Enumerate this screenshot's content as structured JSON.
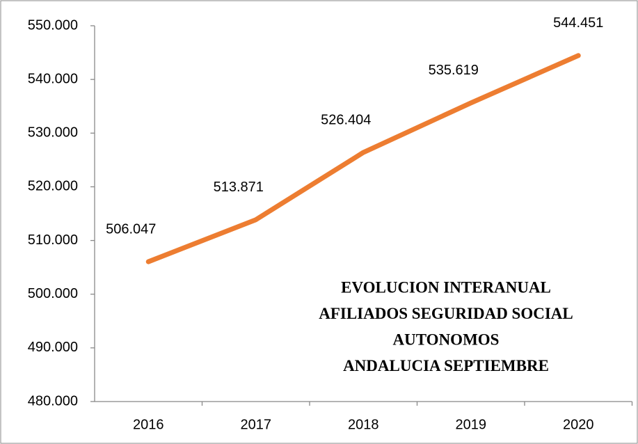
{
  "chart_data": {
    "type": "line",
    "title": [
      "EVOLUCION INTERANUAL",
      "AFILIADOS SEGURIDAD SOCIAL",
      "AUTONOMOS",
      "ANDALUCIA SEPTIEMBRE"
    ],
    "categories": [
      "2016",
      "2017",
      "2018",
      "2019",
      "2020"
    ],
    "series": [
      {
        "color": "#ed7d31",
        "values": [
          506047,
          513871,
          526404,
          535619,
          544451
        ],
        "value_labels": [
          "506.047",
          "513.871",
          "526.404",
          "535.619",
          "544.451"
        ]
      }
    ],
    "ylim": [
      480000,
      550000
    ],
    "yticks": [
      {
        "value": 480000,
        "label": "480.000"
      },
      {
        "value": 490000,
        "label": "490.000"
      },
      {
        "value": 500000,
        "label": "500.000"
      },
      {
        "value": 510000,
        "label": "510.000"
      },
      {
        "value": 520000,
        "label": "520.000"
      },
      {
        "value": 530000,
        "label": "530.000"
      },
      {
        "value": 540000,
        "label": "540.000"
      },
      {
        "value": 550000,
        "label": "550.000"
      }
    ],
    "grid": false
  }
}
